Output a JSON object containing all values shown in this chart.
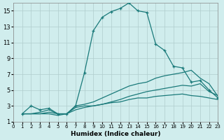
{
  "xlabel": "Humidex (Indice chaleur)",
  "bg_color": "#d0eded",
  "grid_color": "#b0cccc",
  "line_color": "#1a7a7a",
  "xlim": [
    0,
    23
  ],
  "ylim": [
    1,
    16
  ],
  "xticks": [
    0,
    1,
    2,
    3,
    4,
    5,
    6,
    7,
    8,
    9,
    10,
    11,
    12,
    13,
    14,
    15,
    16,
    17,
    18,
    19,
    20,
    21,
    22,
    23
  ],
  "yticks": [
    1,
    3,
    5,
    7,
    9,
    11,
    13,
    15
  ],
  "series1_x": [
    1,
    2,
    3,
    4,
    5,
    6,
    7,
    8,
    9,
    10,
    11,
    12,
    13,
    14,
    15,
    16,
    17,
    18,
    19,
    20,
    21,
    22,
    23
  ],
  "series1_y": [
    2.0,
    3.0,
    2.5,
    2.7,
    2.0,
    2.0,
    3.0,
    7.2,
    12.5,
    14.2,
    14.9,
    15.3,
    16.0,
    15.0,
    14.8,
    10.8,
    10.0,
    8.0,
    7.8,
    6.0,
    6.2,
    5.0,
    4.0
  ],
  "series2_x": [
    1,
    2,
    3,
    4,
    5,
    6,
    7,
    8,
    9,
    10,
    11,
    12,
    13,
    14,
    15,
    16,
    17,
    18,
    19,
    20,
    21,
    22,
    23
  ],
  "series2_y": [
    2.0,
    2.0,
    2.2,
    2.5,
    2.0,
    2.0,
    3.0,
    3.2,
    3.5,
    4.0,
    4.5,
    5.0,
    5.5,
    5.8,
    6.0,
    6.5,
    6.8,
    7.0,
    7.2,
    7.5,
    6.5,
    5.8,
    4.2
  ],
  "series3_x": [
    1,
    2,
    3,
    4,
    5,
    6,
    7,
    8,
    9,
    10,
    11,
    12,
    13,
    14,
    15,
    16,
    17,
    18,
    19,
    20,
    21,
    22,
    23
  ],
  "series3_y": [
    2.0,
    2.0,
    2.0,
    2.2,
    2.0,
    2.0,
    2.5,
    2.8,
    3.0,
    3.2,
    3.5,
    3.8,
    4.2,
    4.5,
    4.8,
    5.0,
    5.2,
    5.4,
    5.6,
    5.5,
    5.8,
    4.8,
    4.3
  ],
  "series4_x": [
    1,
    2,
    3,
    4,
    5,
    6,
    7,
    8,
    9,
    10,
    11,
    12,
    13,
    14,
    15,
    16,
    17,
    18,
    19,
    20,
    21,
    22,
    23
  ],
  "series4_y": [
    2.0,
    2.0,
    2.0,
    2.0,
    1.8,
    2.0,
    2.8,
    3.0,
    3.0,
    3.2,
    3.4,
    3.5,
    3.8,
    4.0,
    4.0,
    4.2,
    4.3,
    4.4,
    4.5,
    4.3,
    4.2,
    4.0,
    3.8
  ]
}
